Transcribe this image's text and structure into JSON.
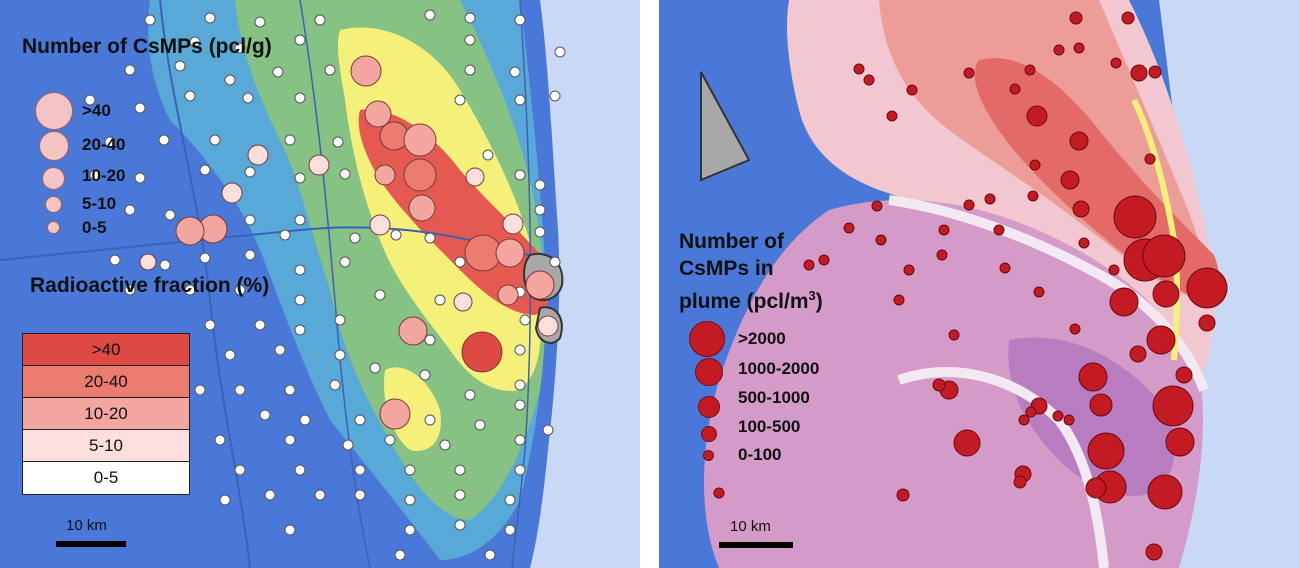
{
  "left_panel": {
    "legend_title": "Number of CsMPs (pcl/g)",
    "size_classes": [
      ">40",
      "20-40",
      "10-20",
      "5-10",
      "0-5"
    ],
    "fraction_title": "Radioactive fraction (%)",
    "fraction_classes": [
      {
        "label": ">40",
        "color": "#de4a43"
      },
      {
        "label": "20-40",
        "color": "#ec7b70"
      },
      {
        "label": "10-20",
        "color": "#f3a6a0"
      },
      {
        "label": "5-10",
        "color": "#fcdedd"
      },
      {
        "label": "0-5",
        "color": "#ffffff"
      }
    ],
    "scale_label": "10 km",
    "map_colors": {
      "blue": "#4a78d8",
      "cyan": "#5ab0d8",
      "green": "#8cc47a",
      "yellow": "#f5f07a",
      "red": "#e55a50",
      "sea": "#c8d8f5"
    }
  },
  "right_panel": {
    "legend_title_line1": "Number of",
    "legend_title_line2": "CsMPs in",
    "legend_title_line3": "plume (pcl/m",
    "legend_title_sup": "3",
    "legend_title_end": ")",
    "size_classes": [
      ">2000",
      "1000-2000",
      "500-1000",
      "100-500",
      "0-100"
    ],
    "scale_label": "10 km",
    "map_colors": {
      "pink": "#f3c7cf",
      "salmon": "#ec9d98",
      "red": "#e36a66",
      "purple": "#d49ac8",
      "violet": "#b87cc0",
      "blue": "#4a78d8",
      "dot": "#c41a24"
    }
  }
}
